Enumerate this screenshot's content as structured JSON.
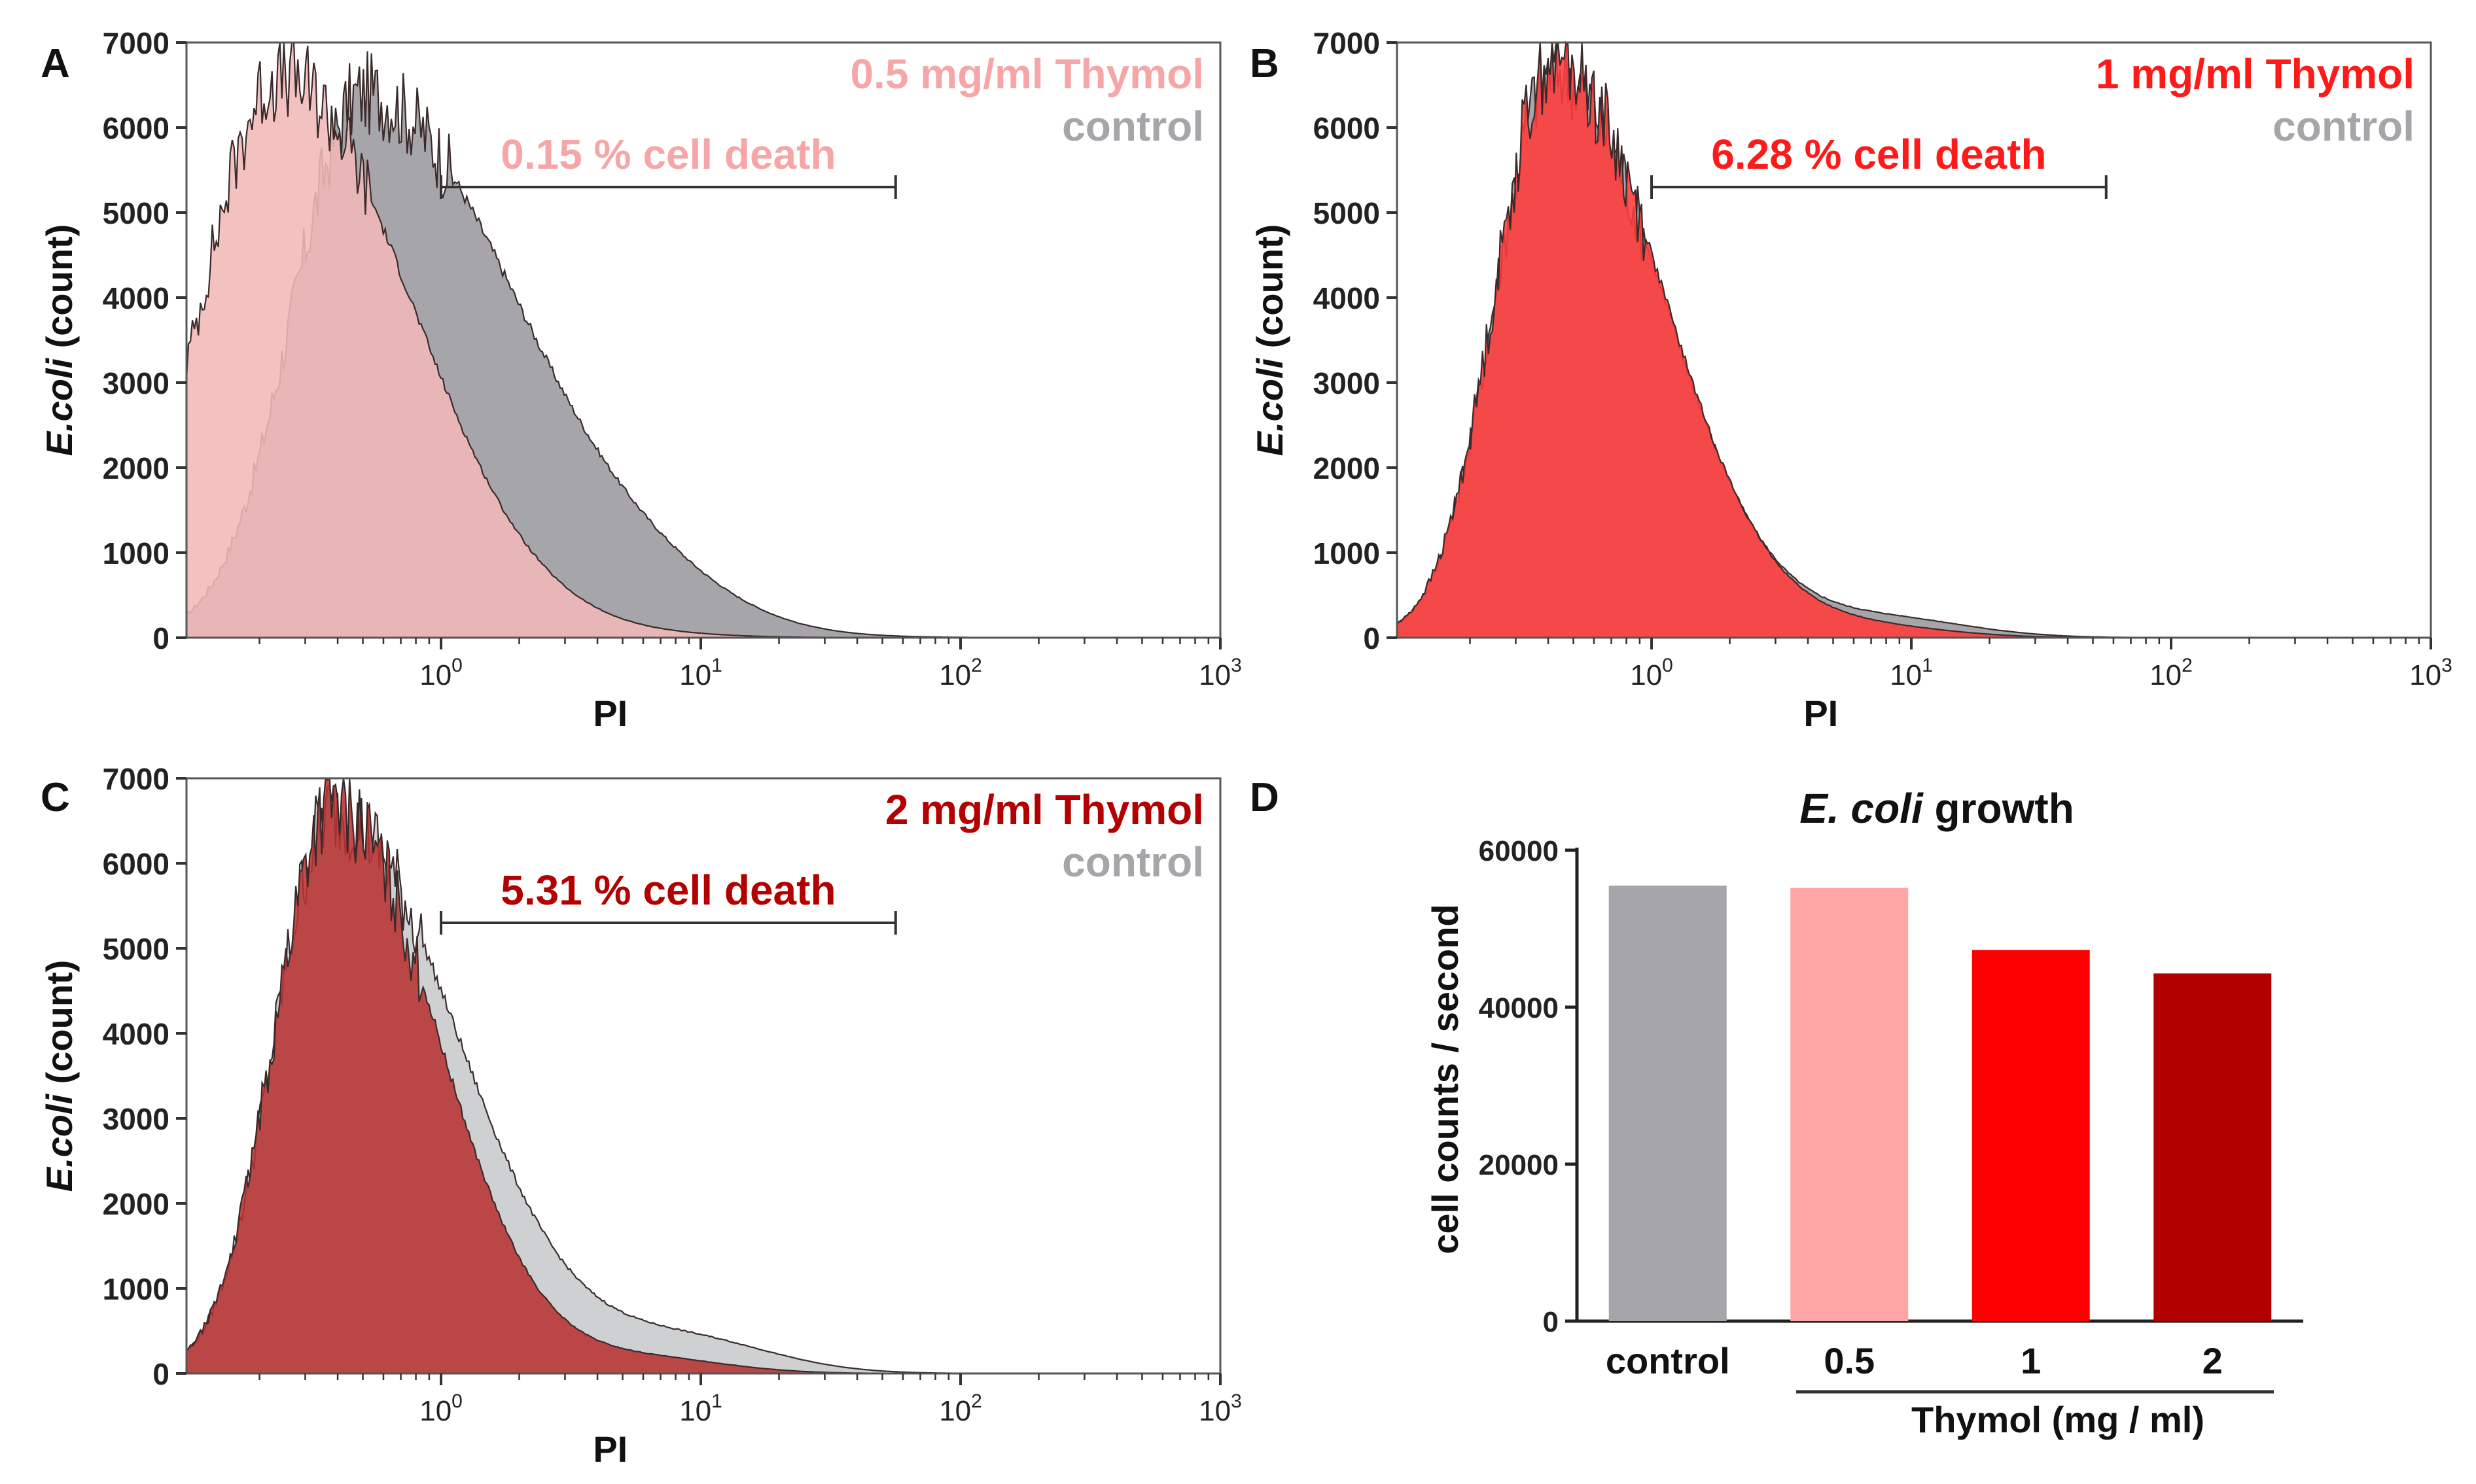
{
  "figure": {
    "description_labels": [
      "A",
      "B",
      "C",
      "D"
    ]
  },
  "colors": {
    "axis": "#333333",
    "control_fill": "#a6a6aa",
    "control_light": "#cfd0d2",
    "pink": "#f6a6a6",
    "pink_fill": "#f2b8b8",
    "red": "#ff1a1a",
    "red_fill": "#ff3b3b",
    "dark_red": "#b30000",
    "dark_red_fill": "#b83232",
    "bar_control": "#a6a5aa",
    "bar_05": "#ffa5a6",
    "bar_1": "#ff0000",
    "bar_2": "#b10000"
  },
  "chart_data": [
    {
      "panel": "A",
      "type": "area",
      "title": "",
      "xlabel": "PI",
      "ylabel_italic": "E.coli",
      "ylabel_rest": " (count)",
      "xscale": "log",
      "xlim_log10": [
        -0.98,
        3
      ],
      "x_ticks": [
        {
          "base": "10",
          "exp": "0"
        },
        {
          "base": "10",
          "exp": "1"
        },
        {
          "base": "10",
          "exp": "2"
        },
        {
          "base": "10",
          "exp": "3"
        }
      ],
      "ylim": [
        0,
        7000
      ],
      "y_ticks": [
        "0",
        "1000",
        "2000",
        "3000",
        "4000",
        "5000",
        "6000",
        "7000"
      ],
      "legend": [
        {
          "label": "0.5 mg/ml Thymol",
          "color": "#f6a6a6"
        },
        {
          "label": "control",
          "color": "#a6a6aa"
        }
      ],
      "gate": {
        "label": "0.15 % cell death",
        "color": "#f6a6a6",
        "x_from_log10": 0,
        "x_to_log10": 1.75,
        "y": 5300
      },
      "series": [
        {
          "name": "control",
          "fill": "#a6a6aa",
          "peak_log10": -0.3,
          "peak": 6400,
          "width": 0.27,
          "tail_sd": 0.6,
          "second_peak_log10": 0.85,
          "second_peak": 200,
          "second_width": 0.3
        },
        {
          "name": "0.5 mg/ml Thymol",
          "fill": "#f2b8b8",
          "peak_log10": -0.62,
          "peak": 6600,
          "width": 0.3,
          "tail_sd": 0.5,
          "second_peak_log10": 0.85,
          "second_peak": 20,
          "second_width": 0.3
        }
      ]
    },
    {
      "panel": "B",
      "type": "area",
      "title": "",
      "xlabel": "PI",
      "ylabel_italic": "E.coli",
      "ylabel_rest": " (count)",
      "xscale": "log",
      "xlim_log10": [
        -0.98,
        3
      ],
      "x_ticks": [
        {
          "base": "10",
          "exp": "0"
        },
        {
          "base": "10",
          "exp": "1"
        },
        {
          "base": "10",
          "exp": "2"
        },
        {
          "base": "10",
          "exp": "3"
        }
      ],
      "ylim": [
        0,
        7000
      ],
      "y_ticks": [
        "0",
        "1000",
        "2000",
        "3000",
        "4000",
        "5000",
        "6000",
        "7000"
      ],
      "legend": [
        {
          "label": "1 mg/ml Thymol",
          "color": "#ff1a1a"
        },
        {
          "label": "control",
          "color": "#a6a6aa"
        }
      ],
      "gate": {
        "label": "6.28 % cell death",
        "color": "#ff1a1a",
        "x_from_log10": 0,
        "x_to_log10": 1.75,
        "y": 5300
      },
      "series": [
        {
          "name": "control",
          "fill": "#a6a6aa",
          "peak_log10": -0.38,
          "peak": 6700,
          "width": 0.22,
          "tail_sd": 0.42,
          "second_peak_log10": 0.9,
          "second_peak": 220,
          "second_width": 0.32
        },
        {
          "name": "1 mg/ml Thymol",
          "fill": "#ff3b3b",
          "peak_log10": -0.38,
          "peak": 6800,
          "width": 0.22,
          "tail_sd": 0.42,
          "second_peak_log10": 0.85,
          "second_peak": 120,
          "second_width": 0.3
        }
      ]
    },
    {
      "panel": "C",
      "type": "area",
      "title": "",
      "xlabel": "PI",
      "ylabel_italic": "E.coli",
      "ylabel_rest": " (count)",
      "xscale": "log",
      "xlim_log10": [
        -0.98,
        3
      ],
      "x_ticks": [
        {
          "base": "10",
          "exp": "0"
        },
        {
          "base": "10",
          "exp": "1"
        },
        {
          "base": "10",
          "exp": "2"
        },
        {
          "base": "10",
          "exp": "3"
        }
      ],
      "ylim": [
        0,
        7000
      ],
      "y_ticks": [
        "0",
        "1000",
        "2000",
        "3000",
        "4000",
        "5000",
        "6000",
        "7000"
      ],
      "legend": [
        {
          "label": "2 mg/ml Thymol",
          "color": "#b30000"
        },
        {
          "label": "control",
          "color": "#a6a6aa"
        }
      ],
      "gate": {
        "label": "5.31 % cell death",
        "color": "#b30000",
        "x_from_log10": 0,
        "x_to_log10": 1.75,
        "y": 5300
      },
      "series": [
        {
          "name": "control",
          "fill": "#cfd0d2",
          "peak_log10": -0.42,
          "peak": 6600,
          "width": 0.22,
          "tail_sd": 0.48,
          "second_peak_log10": 0.95,
          "second_peak": 380,
          "second_width": 0.33
        },
        {
          "name": "2 mg/ml Thymol",
          "fill": "#b83232",
          "peak_log10": -0.42,
          "peak": 6700,
          "width": 0.22,
          "tail_sd": 0.4,
          "second_peak_log10": 0.8,
          "second_peak": 170,
          "second_width": 0.3
        }
      ]
    },
    {
      "panel": "D",
      "type": "bar",
      "title_italic": "E. coli",
      "title_rest": " growth",
      "xlabel": "Thymol (mg / ml)",
      "ylabel": "cell counts / second",
      "categories": [
        "control",
        "0.5",
        "1",
        "2"
      ],
      "values": [
        55500,
        55200,
        47300,
        44300
      ],
      "bar_colors": [
        "#a6a5aa",
        "#ffa5a6",
        "#ff0000",
        "#b10000"
      ],
      "ylim": [
        0,
        60000
      ],
      "y_ticks": [
        "0",
        "20000",
        "40000",
        "60000"
      ]
    }
  ]
}
